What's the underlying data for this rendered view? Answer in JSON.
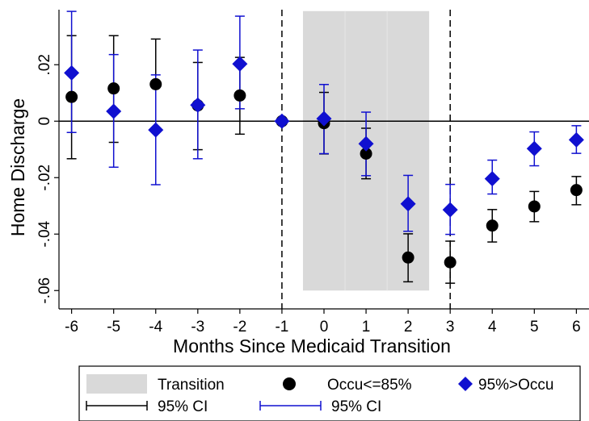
{
  "chart_data": {
    "type": "scatter",
    "title": "",
    "xlabel": "Months Since Medicaid Transition",
    "ylabel": "Home Discharge",
    "xlim": [
      -6.3,
      6.3
    ],
    "ylim": [
      -0.0665,
      0.0395
    ],
    "xticks": [
      -6,
      -5,
      -4,
      -3,
      -2,
      -1,
      0,
      1,
      2,
      3,
      4,
      5,
      6
    ],
    "xtick_labels": [
      "-6",
      "-5",
      "-4",
      "-3",
      "-2",
      "-1",
      "0",
      "1",
      "2",
      "3",
      "4",
      "5",
      "6"
    ],
    "yticks": [
      -0.06,
      -0.04,
      -0.02,
      0,
      0.02
    ],
    "ytick_labels": [
      "-.06",
      "-.04",
      "-.02",
      "0",
      ".02"
    ],
    "reference_lines": {
      "horizontal_y": 0,
      "vertical_dashed_x": [
        -1,
        3
      ]
    },
    "shaded_region": {
      "label": "Transition",
      "x_range": [
        -0.5,
        2.5
      ],
      "y_range": [
        -0.06,
        0.039
      ],
      "color": "#d9d9d9"
    },
    "series": [
      {
        "name": "Occu<=85%",
        "marker": "circle",
        "color": "#000000",
        "ci_label": "95% CI",
        "x": [
          -6,
          -5,
          -4,
          -3,
          -2,
          -1,
          0,
          1,
          2,
          3,
          4,
          5,
          6
        ],
        "y": [
          0.0086,
          0.0116,
          0.0131,
          0.0056,
          0.0091,
          0,
          -0.0007,
          -0.0115,
          -0.0483,
          -0.05,
          -0.037,
          -0.0302,
          -0.0244
        ],
        "ci_low": [
          -0.0133,
          -0.0075,
          -0.0029,
          -0.0101,
          -0.0046,
          0,
          -0.0116,
          -0.0204,
          -0.0569,
          -0.0574,
          -0.0428,
          -0.0356,
          -0.0296
        ],
        "ci_high": [
          0.0303,
          0.0303,
          0.0291,
          0.0208,
          0.0226,
          0,
          0.0102,
          -0.0025,
          -0.0399,
          -0.0425,
          -0.0313,
          -0.0249,
          -0.0196
        ]
      },
      {
        "name": "95%>Occu",
        "marker": "diamond",
        "color": "#1010d0",
        "ci_label": "95% CI",
        "x": [
          -6,
          -5,
          -4,
          -3,
          -2,
          -1,
          0,
          1,
          2,
          3,
          4,
          5,
          6
        ],
        "y": [
          0.0171,
          0.0035,
          -0.0031,
          0.0057,
          0.0203,
          0,
          0.0009,
          -0.008,
          -0.0293,
          -0.0314,
          -0.0204,
          -0.0097,
          -0.0066
        ],
        "ci_low": [
          -0.004,
          -0.0163,
          -0.0225,
          -0.0133,
          0.0044,
          0,
          -0.0115,
          -0.0193,
          -0.039,
          -0.0401,
          -0.0258,
          -0.0158,
          -0.0114
        ],
        "ci_high": [
          0.0389,
          0.0236,
          0.0164,
          0.0252,
          0.0372,
          0,
          0.013,
          0.0032,
          -0.0192,
          -0.0224,
          -0.0138,
          -0.0038,
          -0.0016
        ]
      }
    ],
    "legend": {
      "placement": "bottom",
      "items": [
        {
          "label": "Transition"
        },
        {
          "label": "Occu<=85%"
        },
        {
          "label": "95%>Occu"
        },
        {
          "label": "95% CI"
        },
        {
          "label": "95% CI"
        }
      ]
    }
  }
}
